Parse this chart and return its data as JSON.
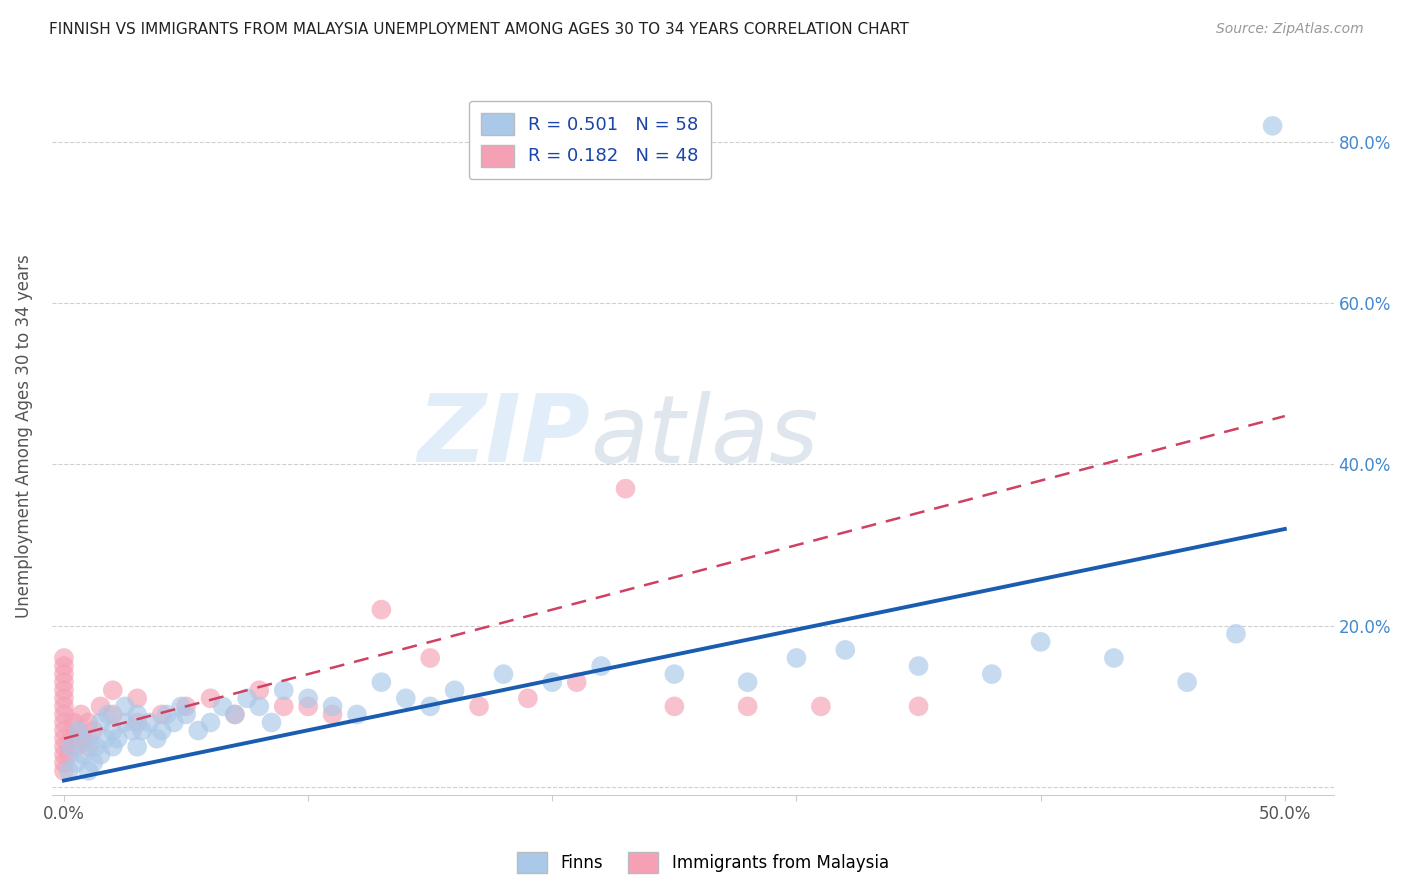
{
  "title": "FINNISH VS IMMIGRANTS FROM MALAYSIA UNEMPLOYMENT AMONG AGES 30 TO 34 YEARS CORRELATION CHART",
  "source": "Source: ZipAtlas.com",
  "ylabel": "Unemployment Among Ages 30 to 34 years",
  "xlim": [
    -0.005,
    0.52
  ],
  "ylim": [
    -0.01,
    0.88
  ],
  "xticks": [
    0.0,
    0.1,
    0.2,
    0.3,
    0.4,
    0.5
  ],
  "xtick_labels": [
    "0.0%",
    "",
    "",
    "",
    "",
    "50.0%"
  ],
  "yticks": [
    0.0,
    0.2,
    0.4,
    0.6,
    0.8
  ],
  "right_ytick_labels": [
    "",
    "20.0%",
    "40.0%",
    "60.0%",
    "80.0%"
  ],
  "legend_finns_R": "R = 0.501",
  "legend_finns_N": "N = 58",
  "legend_malaysia_R": "R = 0.182",
  "legend_malaysia_N": "N = 48",
  "finns_color": "#aac8e8",
  "malaysia_color": "#f5a0b5",
  "finns_line_color": "#1a5cb0",
  "malaysia_line_color": "#d04060",
  "finns_scatter_x": [
    0.002,
    0.003,
    0.005,
    0.006,
    0.008,
    0.01,
    0.01,
    0.012,
    0.013,
    0.015,
    0.015,
    0.017,
    0.018,
    0.02,
    0.02,
    0.022,
    0.025,
    0.025,
    0.028,
    0.03,
    0.03,
    0.032,
    0.035,
    0.038,
    0.04,
    0.042,
    0.045,
    0.048,
    0.05,
    0.055,
    0.06,
    0.065,
    0.07,
    0.075,
    0.08,
    0.085,
    0.09,
    0.1,
    0.11,
    0.12,
    0.13,
    0.14,
    0.15,
    0.16,
    0.18,
    0.2,
    0.22,
    0.25,
    0.28,
    0.3,
    0.32,
    0.35,
    0.38,
    0.4,
    0.43,
    0.46,
    0.48,
    0.495
  ],
  "finns_scatter_y": [
    0.02,
    0.05,
    0.03,
    0.07,
    0.04,
    0.02,
    0.06,
    0.03,
    0.05,
    0.04,
    0.08,
    0.06,
    0.09,
    0.05,
    0.07,
    0.06,
    0.08,
    0.1,
    0.07,
    0.05,
    0.09,
    0.07,
    0.08,
    0.06,
    0.07,
    0.09,
    0.08,
    0.1,
    0.09,
    0.07,
    0.08,
    0.1,
    0.09,
    0.11,
    0.1,
    0.08,
    0.12,
    0.11,
    0.1,
    0.09,
    0.13,
    0.11,
    0.1,
    0.12,
    0.14,
    0.13,
    0.15,
    0.14,
    0.13,
    0.16,
    0.17,
    0.15,
    0.14,
    0.18,
    0.16,
    0.13,
    0.19,
    0.82
  ],
  "malaysia_scatter_x": [
    0.0,
    0.0,
    0.0,
    0.0,
    0.0,
    0.0,
    0.0,
    0.0,
    0.0,
    0.0,
    0.0,
    0.0,
    0.0,
    0.0,
    0.0,
    0.002,
    0.003,
    0.004,
    0.005,
    0.006,
    0.007,
    0.008,
    0.01,
    0.01,
    0.012,
    0.015,
    0.02,
    0.02,
    0.03,
    0.03,
    0.04,
    0.05,
    0.06,
    0.07,
    0.08,
    0.09,
    0.1,
    0.11,
    0.13,
    0.15,
    0.17,
    0.19,
    0.21,
    0.23,
    0.25,
    0.28,
    0.31,
    0.35
  ],
  "malaysia_scatter_y": [
    0.02,
    0.03,
    0.04,
    0.05,
    0.06,
    0.07,
    0.08,
    0.09,
    0.1,
    0.11,
    0.12,
    0.13,
    0.14,
    0.15,
    0.16,
    0.04,
    0.06,
    0.08,
    0.05,
    0.07,
    0.09,
    0.06,
    0.05,
    0.08,
    0.07,
    0.1,
    0.09,
    0.12,
    0.08,
    0.11,
    0.09,
    0.1,
    0.11,
    0.09,
    0.12,
    0.1,
    0.1,
    0.09,
    0.22,
    0.16,
    0.1,
    0.11,
    0.13,
    0.37,
    0.1,
    0.1,
    0.1,
    0.1
  ],
  "finns_trend_x": [
    0.0,
    0.5
  ],
  "finns_trend_y": [
    0.008,
    0.32
  ],
  "malaysia_trend_x": [
    0.0,
    0.5
  ],
  "malaysia_trend_y": [
    0.06,
    0.46
  ],
  "watermark_zip": "ZIP",
  "watermark_atlas": "atlas",
  "background_color": "#ffffff",
  "grid_color": "#d0d0d0",
  "title_color": "#222222",
  "axis_label_color": "#555555",
  "right_ytick_color": "#4488cc",
  "legend_text_color": "#1a44aa"
}
